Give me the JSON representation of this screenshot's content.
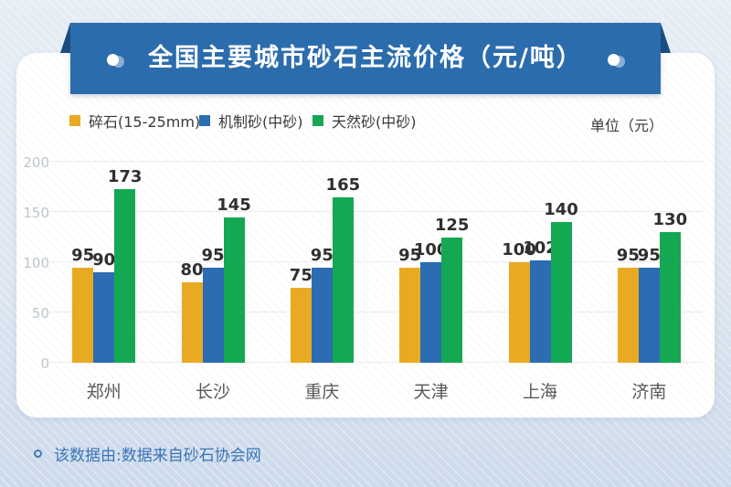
{
  "header": {
    "title": "全国主要城市砂石主流价格（元/吨）"
  },
  "legend": {
    "items": [
      {
        "label": "碎石(15-25mm)",
        "color": "#e9aa23"
      },
      {
        "label": "机制砂(中砂)",
        "color": "#2b6cb2"
      },
      {
        "label": "天然砂(中砂)",
        "color": "#14a853"
      }
    ],
    "unit_label": "单位（元）"
  },
  "chart_data": {
    "type": "bar",
    "title": "全国主要城市砂石主流价格（元/吨）",
    "categories": [
      "郑州",
      "长沙",
      "重庆",
      "天津",
      "上海",
      "济南"
    ],
    "series": [
      {
        "name": "碎石(15-25mm)",
        "color": "#e9aa23",
        "values": [
          95,
          80,
          75,
          95,
          100,
          95
        ]
      },
      {
        "name": "机制砂(中砂)",
        "color": "#2b6cb2",
        "values": [
          90,
          95,
          95,
          100,
          102,
          95
        ]
      },
      {
        "name": "天然砂(中砂)",
        "color": "#14a853",
        "values": [
          173,
          145,
          165,
          125,
          140,
          130
        ]
      }
    ],
    "xlabel": "",
    "ylabel": "",
    "ylim": [
      0,
      200
    ],
    "yticks": [
      0,
      50,
      100,
      150,
      200
    ],
    "grid": true,
    "legend_position": "top"
  },
  "footer": {
    "text": "该数据由:数据来自砂石协会网"
  },
  "colors": {
    "banner": "#2b6cad",
    "banner_fold": "#1c4d80",
    "card_background": "#ffffff",
    "page_background_top": "#e6edf5",
    "page_background_bottom": "#ccdaeb",
    "footer_text": "#3b74b6"
  }
}
